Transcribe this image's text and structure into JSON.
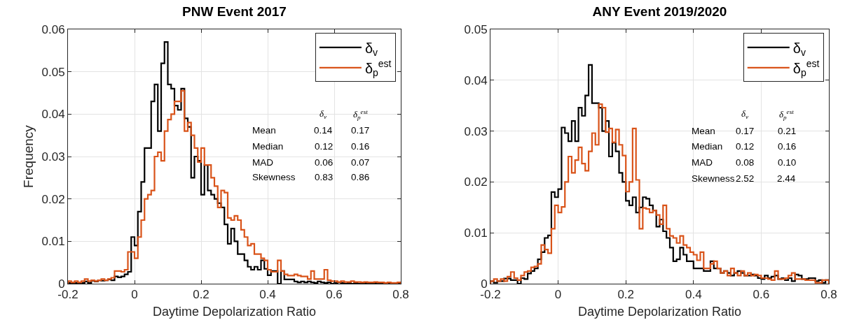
{
  "chart_data": [
    {
      "type": "histogram",
      "title": "PNW Event 2017",
      "xlabel": "Daytime Depolarization Ratio",
      "ylabel": "Frequency",
      "bins": [
        -0.2,
        -0.19,
        -0.18,
        -0.17,
        -0.16,
        -0.15,
        -0.14,
        -0.13,
        -0.12,
        -0.11,
        -0.1,
        -0.09,
        -0.08,
        -0.07,
        -0.06,
        -0.05,
        -0.04,
        -0.03,
        -0.02,
        -0.01,
        0,
        0.01,
        0.02,
        0.03,
        0.04,
        0.05,
        0.06,
        0.07,
        0.08,
        0.09,
        0.1,
        0.11,
        0.12,
        0.13,
        0.14,
        0.15,
        0.16,
        0.17,
        0.18,
        0.19,
        0.2,
        0.21,
        0.22,
        0.23,
        0.24,
        0.25,
        0.26,
        0.27,
        0.28,
        0.29,
        0.3,
        0.31,
        0.32,
        0.33,
        0.34,
        0.35,
        0.36,
        0.37,
        0.38,
        0.39,
        0.4,
        0.41,
        0.42,
        0.43,
        0.44,
        0.45,
        0.46,
        0.47,
        0.48,
        0.49,
        0.5,
        0.51,
        0.52,
        0.53,
        0.54,
        0.55,
        0.56,
        0.57,
        0.58,
        0.59,
        0.6,
        0.61,
        0.62,
        0.63,
        0.64,
        0.65,
        0.66,
        0.67,
        0.68,
        0.69,
        0.7,
        0.71,
        0.72,
        0.73,
        0.74,
        0.75,
        0.76,
        0.77,
        0.78,
        0.79,
        0.8
      ],
      "series": [
        {
          "name": "δ$_{v}$",
          "color": "#000000",
          "values": [
            0.0002,
            0,
            0.0002,
            0,
            0.0002,
            0.0005,
            0.0002,
            0.0007,
            0.0005,
            0.0008,
            0.0007,
            0.0008,
            0.001,
            0.0008,
            0.0017,
            0.0015,
            0.0017,
            0.0022,
            0.0028,
            0.011,
            0.009,
            0.017,
            0.024,
            0.032,
            0.032,
            0.043,
            0.047,
            0.036,
            0.052,
            0.057,
            0.047,
            0.046,
            0.042,
            0.041,
            0.046,
            0.039,
            0.037,
            0.025,
            0.03,
            0.029,
            0.021,
            0.028,
            0.022,
            0.021,
            0.02,
            0.019,
            0.018,
            0.014,
            0.0094,
            0.013,
            0.01,
            0.007,
            0.007,
            0.0055,
            0.004,
            0.0033,
            0.004,
            0.0033,
            0.0055,
            0.0035,
            0.002,
            0.003,
            0.003,
            0,
            0.003,
            0.001,
            0.001,
            0.001,
            0.0005,
            0.0003,
            0.0005,
            0.0003,
            0.0005,
            0.0003,
            0.0002,
            0.0005,
            0.0003,
            0.0002,
            0.0003,
            0,
            0.0002,
            0.0003,
            0.0002,
            0,
            0.0002,
            0,
            0.0002,
            0,
            0,
            0.0002,
            0,
            0,
            0.0002,
            0,
            0,
            0,
            0.0002,
            0,
            0,
            0
          ]
        },
        {
          "name": "δ$_{p}$$^{est}$",
          "color": "#d95319",
          "values": [
            0.0006,
            0.0003,
            0.0006,
            0.0003,
            0.0006,
            0.0011,
            0.0006,
            0.0008,
            0.0006,
            0.0008,
            0.0011,
            0.0008,
            0.0011,
            0.0014,
            0.003,
            0.003,
            0.0028,
            0.0033,
            0.0075,
            0.0075,
            0.006,
            0.011,
            0.015,
            0.02,
            0.021,
            0.022,
            0.03,
            0.031,
            0.029,
            0.036,
            0.0387,
            0.04,
            0.043,
            0.043,
            0.0455,
            0.036,
            0.038,
            0.035,
            0.032,
            0.0287,
            0.032,
            0.028,
            0.028,
            0.025,
            0.023,
            0.018,
            0.022,
            0.0215,
            0.0155,
            0.015,
            0.016,
            0.015,
            0.0127,
            0.011,
            0.009,
            0.0094,
            0.007,
            0.007,
            0.006,
            0.0055,
            0.0033,
            0.0028,
            0.0028,
            0.0055,
            0.003,
            0.0022,
            0.0019,
            0.0019,
            0.0022,
            0.0019,
            0.0017,
            0.0017,
            0.0011,
            0.003,
            0.0011,
            0.0011,
            0.0011,
            0.0033,
            0.0008,
            0.0006,
            0.0006,
            0.0004,
            0.0006,
            0.0004,
            0.0004,
            0.0006,
            0.0004,
            0.0004,
            0.0003,
            0.0004,
            0.0003,
            0.0003,
            0.0004,
            0.0003,
            0.0003,
            0.0002,
            0.0003,
            0.0002,
            0.0002,
            0.0003
          ]
        }
      ],
      "xlim": [
        -0.2,
        0.8
      ],
      "xticks": [
        -0.2,
        0,
        0.2,
        0.4,
        0.6,
        0.8
      ],
      "ylim": [
        0,
        0.06
      ],
      "yticks": [
        0,
        0.01,
        0.02,
        0.03,
        0.04,
        0.05,
        0.06
      ],
      "grid": true,
      "legend": "top right",
      "annotations": [
        "δ$_{v}$",
        "δ$_{p}$$^{est}$",
        "Mean",
        "0.14",
        "0.17",
        "Median",
        "0.12",
        "0.16",
        "MAD",
        "0.06",
        "0.07",
        "Skewness",
        "0.83",
        "0.86"
      ]
    },
    {
      "type": "histogram",
      "title": "ANY Event 2019/2020",
      "xlabel": "Daytime Depolarization Ratio",
      "bins": [
        -0.2,
        -0.19,
        -0.18,
        -0.17,
        -0.16,
        -0.15,
        -0.14,
        -0.13,
        -0.12,
        -0.11,
        -0.1,
        -0.09,
        -0.08,
        -0.07,
        -0.06,
        -0.05,
        -0.04,
        -0.03,
        -0.02,
        -0.01,
        0,
        0.01,
        0.02,
        0.03,
        0.04,
        0.05,
        0.06,
        0.07,
        0.08,
        0.09,
        0.1,
        0.11,
        0.12,
        0.13,
        0.14,
        0.15,
        0.16,
        0.17,
        0.18,
        0.19,
        0.2,
        0.21,
        0.22,
        0.23,
        0.24,
        0.25,
        0.26,
        0.27,
        0.28,
        0.29,
        0.3,
        0.31,
        0.32,
        0.33,
        0.34,
        0.35,
        0.36,
        0.37,
        0.38,
        0.39,
        0.4,
        0.41,
        0.42,
        0.43,
        0.44,
        0.45,
        0.46,
        0.47,
        0.48,
        0.49,
        0.5,
        0.51,
        0.52,
        0.53,
        0.54,
        0.55,
        0.56,
        0.57,
        0.58,
        0.59,
        0.6,
        0.61,
        0.62,
        0.63,
        0.64,
        0.65,
        0.66,
        0.67,
        0.68,
        0.69,
        0.7,
        0.71,
        0.72,
        0.73,
        0.74,
        0.75,
        0.76,
        0.77,
        0.78,
        0.79,
        0.8
      ],
      "series": [
        {
          "name": "δ$_{v}$",
          "color": "#000000",
          "values": [
            0.0005,
            0.0002,
            0.0005,
            0.0005,
            0.001,
            0.001,
            0.0007,
            0.0007,
            0,
            0.0011,
            0.0009,
            0.002,
            0.0025,
            0.003,
            0.0048,
            0.0062,
            0.009,
            0.0095,
            0.018,
            0.017,
            0.0186,
            0.0307,
            0.0296,
            0.028,
            0.032,
            0.028,
            0.0346,
            0.033,
            0.037,
            0.043,
            0.0355,
            0.0355,
            0.0346,
            0.03,
            0.032,
            0.025,
            0.0277,
            0.026,
            0.0218,
            0.02,
            0.0163,
            0.0154,
            0.017,
            0.014,
            0.015,
            0.017,
            0.0167,
            0.0154,
            0.0144,
            0.0112,
            0.0126,
            0.0103,
            0.009,
            0.0071,
            0.0044,
            0.0048,
            0.0071,
            0.0057,
            0.0044,
            0.0044,
            0.003,
            0.003,
            0.003,
            0.0025,
            0.0025,
            0.0044,
            0.003,
            0.003,
            0.0021,
            0.0025,
            0.0021,
            0.0016,
            0.0021,
            0.0025,
            0.0021,
            0.0016,
            0.0016,
            0.0018,
            0.0016,
            0.0011,
            0.0009,
            0.0016,
            0.0011,
            0.0014,
            0.0016,
            0.0009,
            0.0011,
            0.0007,
            0.0011,
            0.0005,
            0.0018,
            0.0016,
            0.0009,
            0.0009,
            0.0011,
            0.0011,
            0.0005,
            0.0007,
            0.0002,
            0.0007
          ]
        },
        {
          "name": "δ$_{p}$$^{est}$",
          "color": "#d95319",
          "values": [
            0.0005,
            0.0009,
            0.0005,
            0.0009,
            0.0005,
            0.0014,
            0.0023,
            0.0011,
            0.0007,
            0.0016,
            0.0023,
            0.0025,
            0.0032,
            0.0034,
            0.0039,
            0.0076,
            0.0067,
            0.006,
            0.0108,
            0.0154,
            0.014,
            0.0151,
            0.02,
            0.025,
            0.0218,
            0.0243,
            0.0268,
            0.0236,
            0.0222,
            0.026,
            0.0296,
            0.0273,
            0.0353,
            0.0346,
            0.0298,
            0.0305,
            0.0278,
            0.0303,
            0.0273,
            0.0252,
            0.0181,
            0.02,
            0.0305,
            0.0204,
            0.0108,
            0.0149,
            0.0147,
            0.014,
            0.0144,
            0.0135,
            0.0117,
            0.0154,
            0.0108,
            0.0094,
            0.009,
            0.008,
            0.0094,
            0.0076,
            0.0071,
            0.0062,
            0.0057,
            0.0046,
            0.0062,
            0.003,
            0.003,
            0.0039,
            0.0044,
            0.003,
            0.0021,
            0.0025,
            0.0016,
            0.003,
            0.0021,
            0.0016,
            0.0025,
            0.0016,
            0.0021,
            0.0016,
            0.0018,
            0.0016,
            0.0011,
            0.0011,
            0.0009,
            0.0007,
            0.0025,
            0.0009,
            0.0009,
            0.0011,
            0.0016,
            0.0021,
            0.0009,
            0.0009,
            0.0009,
            0.0007,
            0.0007,
            0.0007,
            0.0002,
            0.0002,
            0.0007,
            0.0007
          ]
        }
      ],
      "xlim": [
        -0.2,
        0.8
      ],
      "xticks": [
        -0.2,
        0,
        0.2,
        0.4,
        0.6,
        0.8
      ],
      "ylim": [
        0,
        0.05
      ],
      "yticks": [
        0,
        0.01,
        0.02,
        0.03,
        0.04,
        0.05
      ],
      "grid": true,
      "legend": "top right",
      "annotations": [
        "δ$_{v}$",
        "δ$_{p}$$^{est}$",
        "Mean",
        "0.17",
        "0.21",
        "Median",
        "0.12",
        "0.16",
        "MAD",
        "0.08",
        "0.10",
        "Skewness",
        "2.52",
        "2.44"
      ]
    }
  ]
}
